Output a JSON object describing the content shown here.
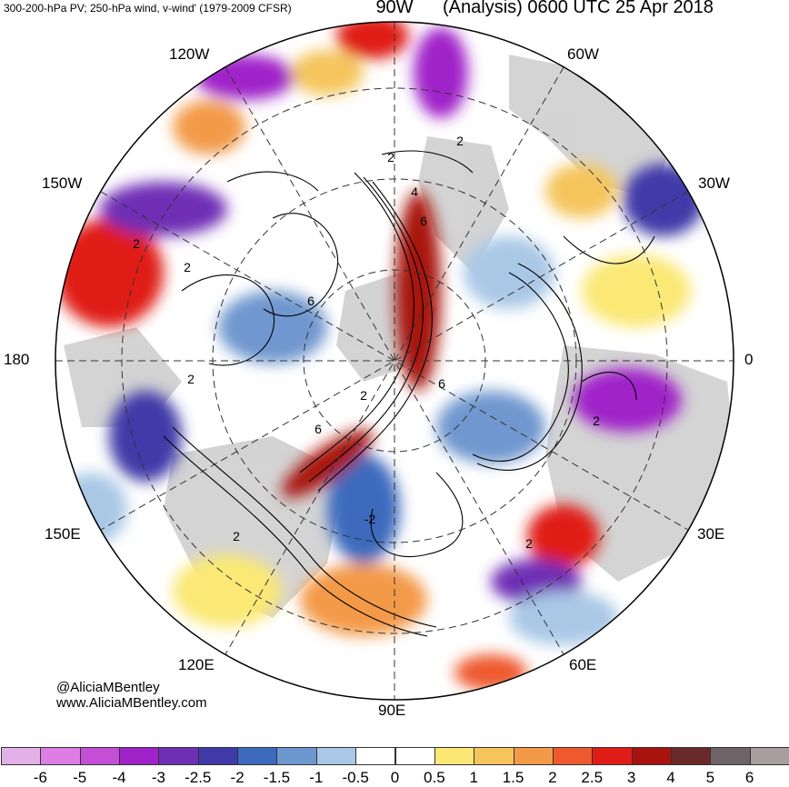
{
  "header": {
    "left": "300-200-hPa PV; 250-hPa wind, v-wind' (1979-2009 CFSR)",
    "right": "(Analysis) 0600 UTC 25 Apr 2018"
  },
  "longitude_labels": [
    "90W",
    "60W",
    "30W",
    "0",
    "30E",
    "60E",
    "90E",
    "120E",
    "150E",
    "180",
    "150W",
    "120W"
  ],
  "contour_labels": [
    "2",
    "4",
    "6",
    "2",
    "6",
    "6",
    "2",
    "2",
    "2",
    "2",
    "6",
    "-2",
    "2",
    "2",
    "2"
  ],
  "credits": {
    "handle": "@AliciaMBentley",
    "website": "www.AliciaMBentley.com"
  },
  "colorbar": {
    "labels": [
      "-6",
      "-5",
      "-4",
      "-3",
      "-2.5",
      "-2",
      "-1.5",
      "-1",
      "-0.5",
      "0",
      "0.5",
      "1",
      "1.5",
      "2",
      "2.5",
      "3",
      "4",
      "5",
      "6"
    ],
    "colors": [
      "#e3b0e8",
      "#dd7ee3",
      "#c44fd6",
      "#a023c9",
      "#6f2fb5",
      "#3f3aa8",
      "#3c6bbd",
      "#6f97cf",
      "#a9c8e6",
      "#ffffff",
      "#ffffff",
      "#fbe874",
      "#f5c55c",
      "#f39a48",
      "#ee5a2e",
      "#e01c17",
      "#a8120f",
      "#6b2a2a",
      "#6e6467",
      "#a89ea0"
    ]
  },
  "style": {
    "land_color": "#cfcfcf",
    "contour_color": "#000000"
  }
}
